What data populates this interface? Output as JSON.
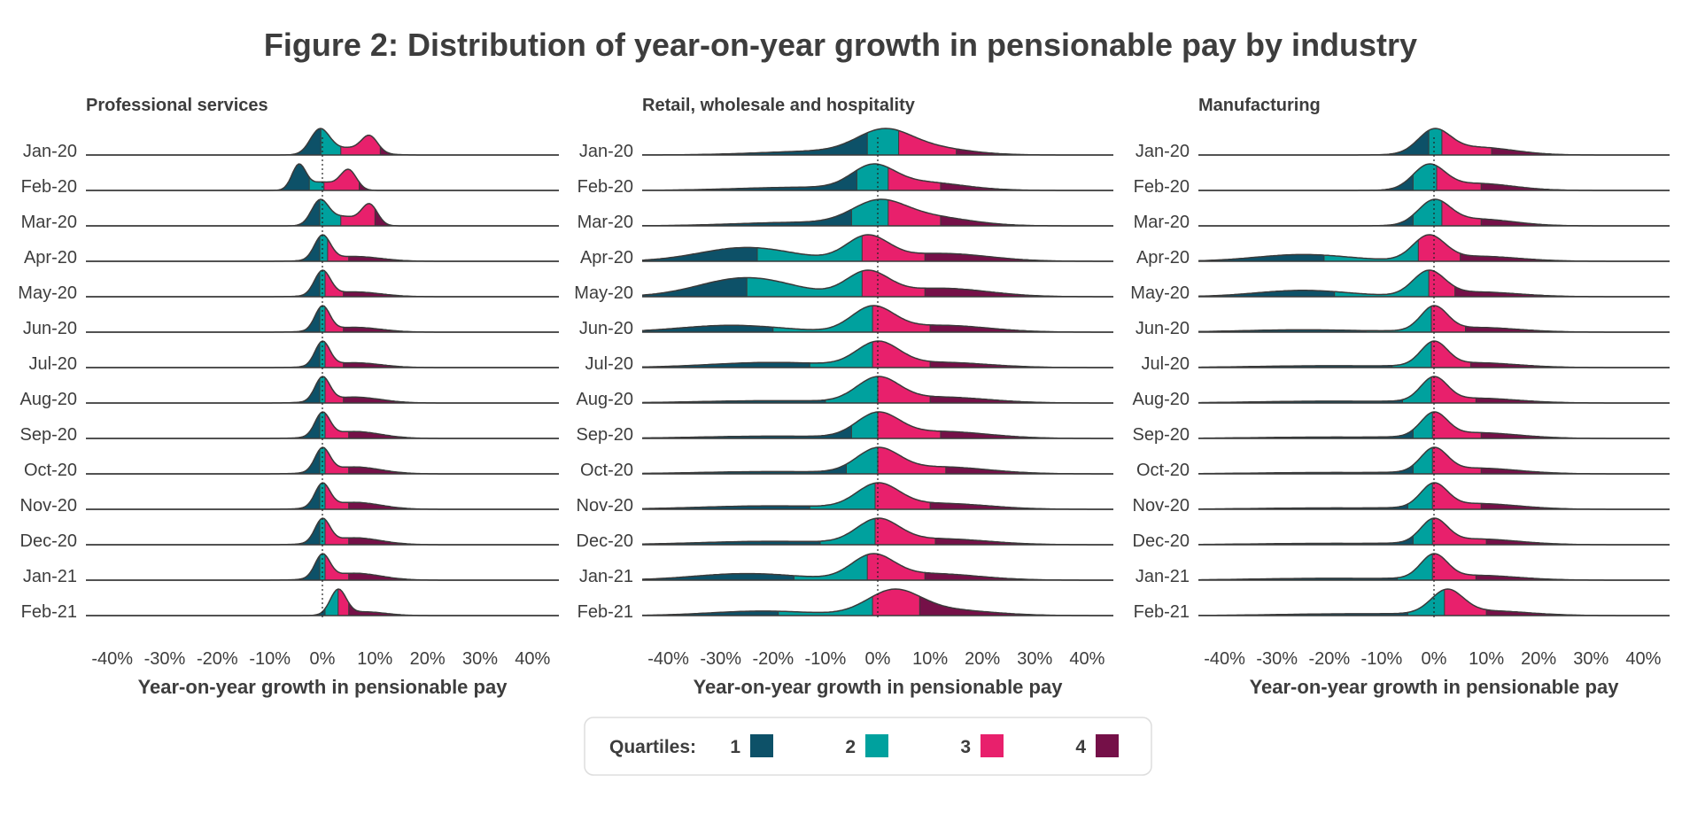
{
  "title": "Figure 2: Distribution of year-on-year growth in pensionable pay by industry",
  "colors": {
    "q1": "#0d5168",
    "q2": "#00a19e",
    "q3": "#e8206c",
    "q4": "#751048",
    "outline": "#3a3a3a",
    "text": "#3d3d3d"
  },
  "legend": {
    "title": "Quartiles:",
    "items": [
      {
        "label": "1",
        "color": "#0d5168"
      },
      {
        "label": "2",
        "color": "#00a19e"
      },
      {
        "label": "3",
        "color": "#e8206c"
      },
      {
        "label": "4",
        "color": "#751048"
      }
    ]
  },
  "chart_data": {
    "type": "ridgeline",
    "x_ticks": [
      "-40%",
      "-30%",
      "-20%",
      "-10%",
      "0%",
      "10%",
      "20%",
      "30%",
      "40%"
    ],
    "xlim": [
      -45,
      45
    ],
    "xlabel": "Year-on-year growth in pensionable pay",
    "months": [
      "Jan-20",
      "Feb-20",
      "Mar-20",
      "Apr-20",
      "May-20",
      "Jun-20",
      "Jul-20",
      "Aug-20",
      "Sep-20",
      "Oct-20",
      "Nov-20",
      "Dec-20",
      "Jan-21",
      "Feb-21"
    ],
    "panels": [
      {
        "name": "Professional services",
        "quartile_cutoffs_pct": [
          [
            -0.3,
            3.5,
            11
          ],
          [
            -2.5,
            0.3,
            7
          ],
          [
            -0.5,
            3.5,
            10
          ],
          [
            -0.5,
            1,
            5
          ],
          [
            -0.5,
            0.5,
            4
          ],
          [
            -0.5,
            0.5,
            4
          ],
          [
            -0.5,
            0.5,
            4
          ],
          [
            -0.5,
            0.5,
            4
          ],
          [
            -0.5,
            0.5,
            5
          ],
          [
            -0.5,
            0.5,
            5
          ],
          [
            -0.5,
            0.5,
            5
          ],
          [
            -0.5,
            0.5,
            5
          ],
          [
            -0.5,
            0.5,
            5
          ],
          [
            0.5,
            3,
            5
          ]
        ],
        "peaks": [
          [
            {
              "mu": -0.5,
              "sd": 1.8,
              "h": 1.0
            },
            {
              "mu": 9,
              "sd": 1.5,
              "h": 0.65
            },
            {
              "mu": 5,
              "sd": 4,
              "h": 0.3
            }
          ],
          [
            {
              "mu": -4.5,
              "sd": 1.3,
              "h": 1.0
            },
            {
              "mu": 5,
              "sd": 1.5,
              "h": 0.8
            },
            {
              "mu": 0,
              "sd": 3,
              "h": 0.35
            }
          ],
          [
            {
              "mu": -0.5,
              "sd": 1.6,
              "h": 1.0
            },
            {
              "mu": 9,
              "sd": 1.5,
              "h": 0.85
            },
            {
              "mu": 4,
              "sd": 3,
              "h": 0.4
            }
          ],
          [
            {
              "mu": 0,
              "sd": 1.5,
              "h": 1.0
            },
            {
              "mu": 6,
              "sd": 5,
              "h": 0.2
            }
          ],
          [
            {
              "mu": 0,
              "sd": 1.5,
              "h": 1.0
            },
            {
              "mu": 6,
              "sd": 5,
              "h": 0.2
            }
          ],
          [
            {
              "mu": 0,
              "sd": 1.4,
              "h": 1.0
            },
            {
              "mu": 6,
              "sd": 5,
              "h": 0.2
            }
          ],
          [
            {
              "mu": 0,
              "sd": 1.4,
              "h": 1.0
            },
            {
              "mu": 6,
              "sd": 5,
              "h": 0.2
            }
          ],
          [
            {
              "mu": 0,
              "sd": 1.4,
              "h": 1.0
            },
            {
              "mu": 6,
              "sd": 5,
              "h": 0.25
            }
          ],
          [
            {
              "mu": 0,
              "sd": 1.4,
              "h": 1.0
            },
            {
              "mu": 6,
              "sd": 5,
              "h": 0.3
            }
          ],
          [
            {
              "mu": 0,
              "sd": 1.4,
              "h": 1.0
            },
            {
              "mu": 6,
              "sd": 5,
              "h": 0.3
            }
          ],
          [
            {
              "mu": 0,
              "sd": 1.4,
              "h": 1.0
            },
            {
              "mu": 6,
              "sd": 5,
              "h": 0.3
            }
          ],
          [
            {
              "mu": 0,
              "sd": 1.4,
              "h": 1.0
            },
            {
              "mu": 6,
              "sd": 5,
              "h": 0.3
            }
          ],
          [
            {
              "mu": 0,
              "sd": 1.4,
              "h": 1.0
            },
            {
              "mu": 6,
              "sd": 5,
              "h": 0.3
            }
          ],
          [
            {
              "mu": 3,
              "sd": 1.5,
              "h": 1.0
            },
            {
              "mu": 8,
              "sd": 4,
              "h": 0.15
            }
          ]
        ]
      },
      {
        "name": "Retail, wholesale and hospitality",
        "quartile_cutoffs_pct": [
          [
            -2,
            4,
            15
          ],
          [
            -4,
            2,
            12
          ],
          [
            -5,
            2,
            12
          ],
          [
            -23,
            -3,
            9
          ],
          [
            -25,
            -3,
            9
          ],
          [
            -20,
            -1,
            10
          ],
          [
            -13,
            -1,
            10
          ],
          [
            -10,
            0,
            10
          ],
          [
            -5,
            0,
            12
          ],
          [
            -6,
            0,
            13
          ],
          [
            -13,
            -0.5,
            10
          ],
          [
            -11,
            -0.5,
            11
          ],
          [
            -16,
            -2,
            9
          ],
          [
            -19,
            -1,
            8
          ]
        ],
        "peaks": [
          [
            {
              "mu": 1,
              "sd": 5,
              "h": 0.95
            },
            {
              "mu": 8,
              "sd": 8,
              "h": 0.4
            },
            {
              "mu": -10,
              "sd": 12,
              "h": 0.2
            }
          ],
          [
            {
              "mu": -1,
              "sd": 4,
              "h": 1.0
            },
            {
              "mu": 8,
              "sd": 8,
              "h": 0.4
            },
            {
              "mu": -15,
              "sd": 12,
              "h": 0.15
            }
          ],
          [
            {
              "mu": 0,
              "sd": 5,
              "h": 0.85
            },
            {
              "mu": 9,
              "sd": 8,
              "h": 0.4
            },
            {
              "mu": -15,
              "sd": 12,
              "h": 0.15
            }
          ],
          [
            {
              "mu": -2,
              "sd": 4,
              "h": 0.6
            },
            {
              "mu": -25,
              "sd": 9,
              "h": 0.35
            },
            {
              "mu": 12,
              "sd": 9,
              "h": 0.2
            }
          ],
          [
            {
              "mu": -2,
              "sd": 4,
              "h": 0.55
            },
            {
              "mu": -25,
              "sd": 9,
              "h": 0.45
            },
            {
              "mu": 12,
              "sd": 9,
              "h": 0.2
            }
          ],
          [
            {
              "mu": -1,
              "sd": 4,
              "h": 0.7
            },
            {
              "mu": -28,
              "sd": 10,
              "h": 0.2
            },
            {
              "mu": 12,
              "sd": 9,
              "h": 0.2
            }
          ],
          [
            {
              "mu": 0,
              "sd": 4,
              "h": 0.9
            },
            {
              "mu": -20,
              "sd": 12,
              "h": 0.2
            },
            {
              "mu": 12,
              "sd": 9,
              "h": 0.2
            }
          ],
          [
            {
              "mu": 0,
              "sd": 4,
              "h": 1.0
            },
            {
              "mu": -20,
              "sd": 14,
              "h": 0.1
            },
            {
              "mu": 12,
              "sd": 9,
              "h": 0.25
            }
          ],
          [
            {
              "mu": 0,
              "sd": 4,
              "h": 1.0
            },
            {
              "mu": -20,
              "sd": 14,
              "h": 0.1
            },
            {
              "mu": 12,
              "sd": 9,
              "h": 0.3
            }
          ],
          [
            {
              "mu": 0,
              "sd": 4,
              "h": 1.0
            },
            {
              "mu": -20,
              "sd": 14,
              "h": 0.1
            },
            {
              "mu": 12,
              "sd": 9,
              "h": 0.3
            }
          ],
          [
            {
              "mu": 0,
              "sd": 4,
              "h": 1.0
            },
            {
              "mu": -20,
              "sd": 14,
              "h": 0.15
            },
            {
              "mu": 12,
              "sd": 9,
              "h": 0.25
            }
          ],
          [
            {
              "mu": 0,
              "sd": 4,
              "h": 1.0
            },
            {
              "mu": -20,
              "sd": 14,
              "h": 0.15
            },
            {
              "mu": 12,
              "sd": 9,
              "h": 0.25
            }
          ],
          [
            {
              "mu": -1,
              "sd": 4,
              "h": 0.7
            },
            {
              "mu": -25,
              "sd": 10,
              "h": 0.2
            },
            {
              "mu": 10,
              "sd": 9,
              "h": 0.2
            }
          ],
          [
            {
              "mu": 3,
              "sd": 5,
              "h": 0.75
            },
            {
              "mu": -22,
              "sd": 10,
              "h": 0.15
            },
            {
              "mu": 12,
              "sd": 9,
              "h": 0.2
            }
          ]
        ]
      },
      {
        "name": "Manufacturing",
        "quartile_cutoffs_pct": [
          [
            -1,
            1.5,
            11
          ],
          [
            -4,
            0.5,
            9
          ],
          [
            -4,
            1.5,
            9
          ],
          [
            -21,
            -3,
            5
          ],
          [
            -19,
            -1,
            4
          ],
          [
            -13,
            -0.5,
            6
          ],
          [
            -8,
            -0.5,
            7
          ],
          [
            -6,
            -0.5,
            8
          ],
          [
            -4,
            -0.3,
            9
          ],
          [
            -4,
            -0.3,
            9
          ],
          [
            -5,
            -0.3,
            9
          ],
          [
            -4,
            -0.3,
            10
          ],
          [
            -7,
            -0.3,
            8
          ],
          [
            -5,
            2,
            10
          ]
        ],
        "peaks": [
          [
            {
              "mu": 0,
              "sd": 3,
              "h": 1.0
            },
            {
              "mu": 8,
              "sd": 7,
              "h": 0.35
            }
          ],
          [
            {
              "mu": -1,
              "sd": 3,
              "h": 1.0
            },
            {
              "mu": 8,
              "sd": 7,
              "h": 0.3
            }
          ],
          [
            {
              "mu": 0,
              "sd": 3,
              "h": 1.0
            },
            {
              "mu": 8,
              "sd": 7,
              "h": 0.3
            }
          ],
          [
            {
              "mu": -1,
              "sd": 3,
              "h": 0.7
            },
            {
              "mu": -25,
              "sd": 9,
              "h": 0.2
            },
            {
              "mu": 8,
              "sd": 8,
              "h": 0.15
            }
          ],
          [
            {
              "mu": -1,
              "sd": 3,
              "h": 0.75
            },
            {
              "mu": -25,
              "sd": 9,
              "h": 0.2
            },
            {
              "mu": 8,
              "sd": 8,
              "h": 0.15
            }
          ],
          [
            {
              "mu": 0,
              "sd": 2.5,
              "h": 1.0
            },
            {
              "mu": -25,
              "sd": 12,
              "h": 0.1
            },
            {
              "mu": 8,
              "sd": 8,
              "h": 0.2
            }
          ],
          [
            {
              "mu": 0,
              "sd": 2.5,
              "h": 1.0
            },
            {
              "mu": -20,
              "sd": 14,
              "h": 0.08
            },
            {
              "mu": 8,
              "sd": 8,
              "h": 0.2
            }
          ],
          [
            {
              "mu": 0,
              "sd": 2.5,
              "h": 1.0
            },
            {
              "mu": -20,
              "sd": 14,
              "h": 0.08
            },
            {
              "mu": 8,
              "sd": 8,
              "h": 0.2
            }
          ],
          [
            {
              "mu": 0,
              "sd": 2.5,
              "h": 1.0
            },
            {
              "mu": -20,
              "sd": 14,
              "h": 0.06
            },
            {
              "mu": 8,
              "sd": 8,
              "h": 0.25
            }
          ],
          [
            {
              "mu": 0,
              "sd": 2.5,
              "h": 1.0
            },
            {
              "mu": -20,
              "sd": 14,
              "h": 0.06
            },
            {
              "mu": 8,
              "sd": 8,
              "h": 0.25
            }
          ],
          [
            {
              "mu": 0,
              "sd": 2.5,
              "h": 1.0
            },
            {
              "mu": -20,
              "sd": 14,
              "h": 0.06
            },
            {
              "mu": 8,
              "sd": 8,
              "h": 0.25
            }
          ],
          [
            {
              "mu": 0,
              "sd": 2.5,
              "h": 1.0
            },
            {
              "mu": -20,
              "sd": 14,
              "h": 0.06
            },
            {
              "mu": 8,
              "sd": 8,
              "h": 0.25
            }
          ],
          [
            {
              "mu": 0,
              "sd": 2.5,
              "h": 1.0
            },
            {
              "mu": -20,
              "sd": 14,
              "h": 0.08
            },
            {
              "mu": 8,
              "sd": 8,
              "h": 0.2
            }
          ],
          [
            {
              "mu": 2.5,
              "sd": 3,
              "h": 1.0
            },
            {
              "mu": -15,
              "sd": 14,
              "h": 0.08
            },
            {
              "mu": 10,
              "sd": 8,
              "h": 0.2
            }
          ]
        ]
      }
    ]
  }
}
